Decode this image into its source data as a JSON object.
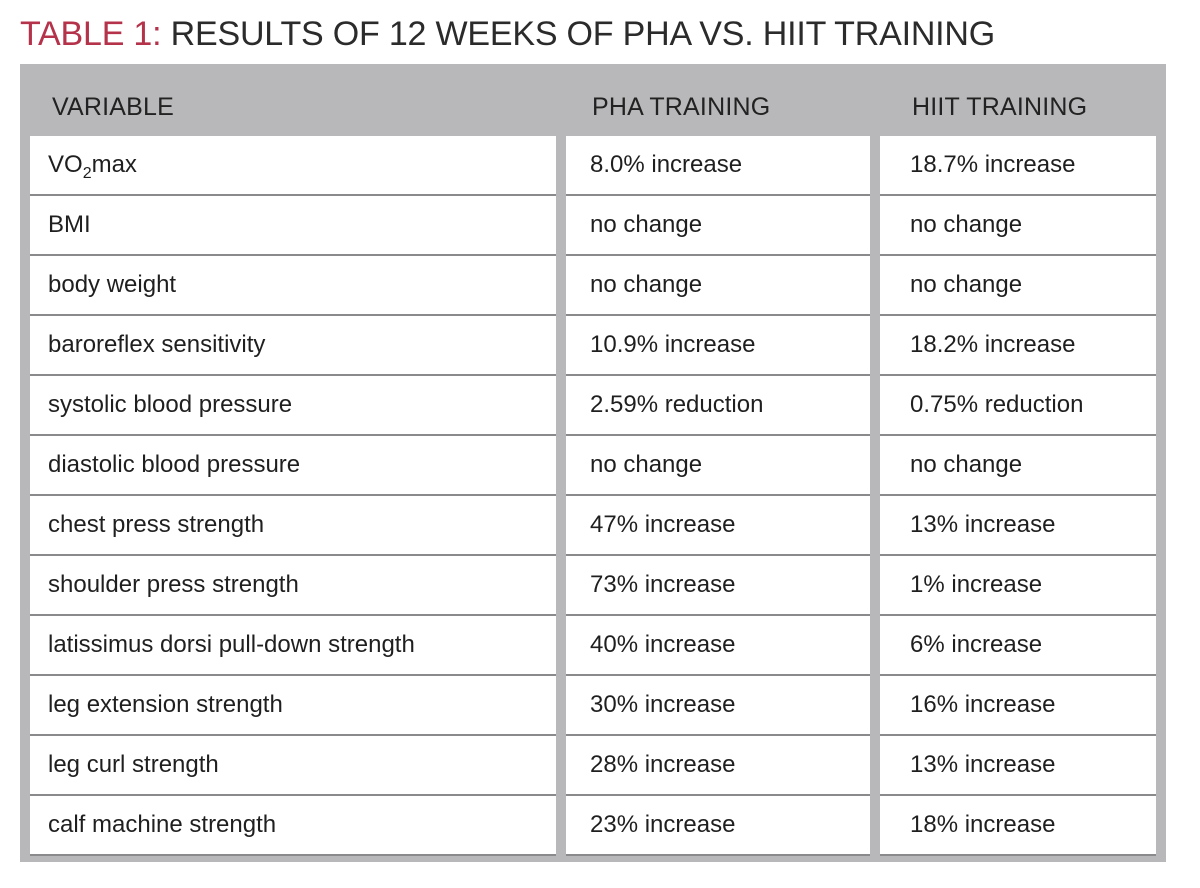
{
  "title": {
    "label": "TABLE 1:",
    "text": " RESULTS OF 12 WEEKS OF PHA VS. HIIT TRAINING"
  },
  "colors": {
    "label": "#b5334a",
    "frame": "#b8b8ba",
    "row_divider": "#8a8a8c"
  },
  "table": {
    "headers": [
      "VARIABLE",
      "PHA TRAINING",
      "HIIT TRAINING"
    ],
    "first_variable": {
      "base": "VO",
      "sub": "2",
      "suffix": "max"
    },
    "rows": [
      {
        "variable": "VO2max",
        "pha": "8.0% increase",
        "hiit": "18.7% increase"
      },
      {
        "variable": "BMI",
        "pha": "no change",
        "hiit": "no change"
      },
      {
        "variable": "body weight",
        "pha": "no change",
        "hiit": "no change"
      },
      {
        "variable": "baroreflex sensitivity",
        "pha": "10.9% increase",
        "hiit": "18.2% increase"
      },
      {
        "variable": "systolic blood pressure",
        "pha": "2.59% reduction",
        "hiit": "0.75% reduction"
      },
      {
        "variable": "diastolic blood pressure",
        "pha": "no change",
        "hiit": "no change"
      },
      {
        "variable": "chest press strength",
        "pha": "47% increase",
        "hiit": "13% increase"
      },
      {
        "variable": "shoulder press strength",
        "pha": "73% increase",
        "hiit": "1% increase"
      },
      {
        "variable": "latissimus dorsi pull-down strength",
        "pha": "40% increase",
        "hiit": "6% increase"
      },
      {
        "variable": "leg extension strength",
        "pha": "30% increase",
        "hiit": "16% increase"
      },
      {
        "variable": "leg curl strength",
        "pha": "28% increase",
        "hiit": "13% increase"
      },
      {
        "variable": "calf machine strength",
        "pha": "23% increase",
        "hiit": "18% increase"
      }
    ]
  }
}
